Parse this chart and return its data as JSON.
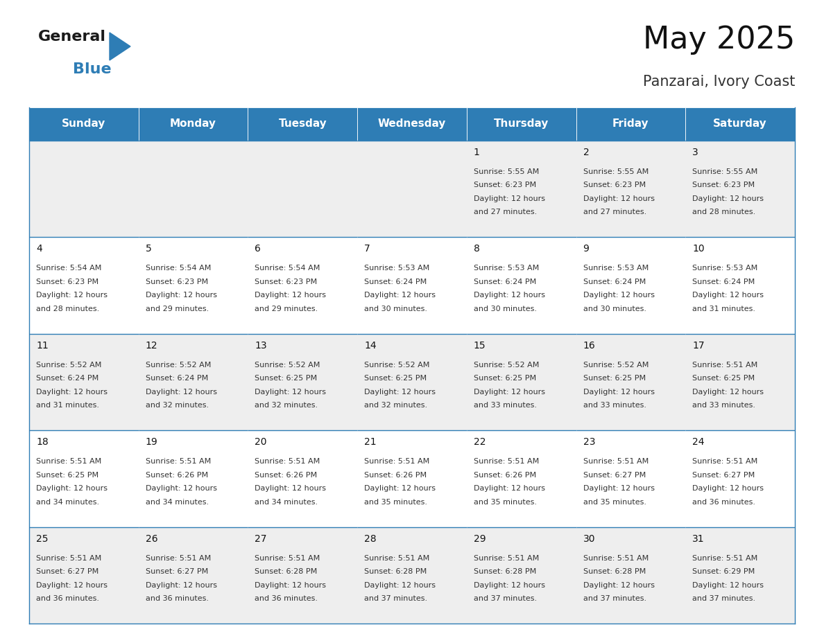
{
  "title": "May 2025",
  "subtitle": "Panzarai, Ivory Coast",
  "header_bg": "#2E7DB5",
  "header_text_color": "#FFFFFF",
  "days_of_week": [
    "Sunday",
    "Monday",
    "Tuesday",
    "Wednesday",
    "Thursday",
    "Friday",
    "Saturday"
  ],
  "row_bg_light": "#EEEEEE",
  "row_bg_white": "#FFFFFF",
  "cell_border_color": "#2E7DB5",
  "text_color": "#333333",
  "day_num_color": "#111111",
  "calendar": [
    [
      {
        "day": "",
        "sunrise": "",
        "sunset": "",
        "daylight": ""
      },
      {
        "day": "",
        "sunrise": "",
        "sunset": "",
        "daylight": ""
      },
      {
        "day": "",
        "sunrise": "",
        "sunset": "",
        "daylight": ""
      },
      {
        "day": "",
        "sunrise": "",
        "sunset": "",
        "daylight": ""
      },
      {
        "day": "1",
        "sunrise": "5:55 AM",
        "sunset": "6:23 PM",
        "daylight": "12 hours and 27 minutes."
      },
      {
        "day": "2",
        "sunrise": "5:55 AM",
        "sunset": "6:23 PM",
        "daylight": "12 hours and 27 minutes."
      },
      {
        "day": "3",
        "sunrise": "5:55 AM",
        "sunset": "6:23 PM",
        "daylight": "12 hours and 28 minutes."
      }
    ],
    [
      {
        "day": "4",
        "sunrise": "5:54 AM",
        "sunset": "6:23 PM",
        "daylight": "12 hours and 28 minutes."
      },
      {
        "day": "5",
        "sunrise": "5:54 AM",
        "sunset": "6:23 PM",
        "daylight": "12 hours and 29 minutes."
      },
      {
        "day": "6",
        "sunrise": "5:54 AM",
        "sunset": "6:23 PM",
        "daylight": "12 hours and 29 minutes."
      },
      {
        "day": "7",
        "sunrise": "5:53 AM",
        "sunset": "6:24 PM",
        "daylight": "12 hours and 30 minutes."
      },
      {
        "day": "8",
        "sunrise": "5:53 AM",
        "sunset": "6:24 PM",
        "daylight": "12 hours and 30 minutes."
      },
      {
        "day": "9",
        "sunrise": "5:53 AM",
        "sunset": "6:24 PM",
        "daylight": "12 hours and 30 minutes."
      },
      {
        "day": "10",
        "sunrise": "5:53 AM",
        "sunset": "6:24 PM",
        "daylight": "12 hours and 31 minutes."
      }
    ],
    [
      {
        "day": "11",
        "sunrise": "5:52 AM",
        "sunset": "6:24 PM",
        "daylight": "12 hours and 31 minutes."
      },
      {
        "day": "12",
        "sunrise": "5:52 AM",
        "sunset": "6:24 PM",
        "daylight": "12 hours and 32 minutes."
      },
      {
        "day": "13",
        "sunrise": "5:52 AM",
        "sunset": "6:25 PM",
        "daylight": "12 hours and 32 minutes."
      },
      {
        "day": "14",
        "sunrise": "5:52 AM",
        "sunset": "6:25 PM",
        "daylight": "12 hours and 32 minutes."
      },
      {
        "day": "15",
        "sunrise": "5:52 AM",
        "sunset": "6:25 PM",
        "daylight": "12 hours and 33 minutes."
      },
      {
        "day": "16",
        "sunrise": "5:52 AM",
        "sunset": "6:25 PM",
        "daylight": "12 hours and 33 minutes."
      },
      {
        "day": "17",
        "sunrise": "5:51 AM",
        "sunset": "6:25 PM",
        "daylight": "12 hours and 33 minutes."
      }
    ],
    [
      {
        "day": "18",
        "sunrise": "5:51 AM",
        "sunset": "6:25 PM",
        "daylight": "12 hours and 34 minutes."
      },
      {
        "day": "19",
        "sunrise": "5:51 AM",
        "sunset": "6:26 PM",
        "daylight": "12 hours and 34 minutes."
      },
      {
        "day": "20",
        "sunrise": "5:51 AM",
        "sunset": "6:26 PM",
        "daylight": "12 hours and 34 minutes."
      },
      {
        "day": "21",
        "sunrise": "5:51 AM",
        "sunset": "6:26 PM",
        "daylight": "12 hours and 35 minutes."
      },
      {
        "day": "22",
        "sunrise": "5:51 AM",
        "sunset": "6:26 PM",
        "daylight": "12 hours and 35 minutes."
      },
      {
        "day": "23",
        "sunrise": "5:51 AM",
        "sunset": "6:27 PM",
        "daylight": "12 hours and 35 minutes."
      },
      {
        "day": "24",
        "sunrise": "5:51 AM",
        "sunset": "6:27 PM",
        "daylight": "12 hours and 36 minutes."
      }
    ],
    [
      {
        "day": "25",
        "sunrise": "5:51 AM",
        "sunset": "6:27 PM",
        "daylight": "12 hours and 36 minutes."
      },
      {
        "day": "26",
        "sunrise": "5:51 AM",
        "sunset": "6:27 PM",
        "daylight": "12 hours and 36 minutes."
      },
      {
        "day": "27",
        "sunrise": "5:51 AM",
        "sunset": "6:28 PM",
        "daylight": "12 hours and 36 minutes."
      },
      {
        "day": "28",
        "sunrise": "5:51 AM",
        "sunset": "6:28 PM",
        "daylight": "12 hours and 37 minutes."
      },
      {
        "day": "29",
        "sunrise": "5:51 AM",
        "sunset": "6:28 PM",
        "daylight": "12 hours and 37 minutes."
      },
      {
        "day": "30",
        "sunrise": "5:51 AM",
        "sunset": "6:28 PM",
        "daylight": "12 hours and 37 minutes."
      },
      {
        "day": "31",
        "sunrise": "5:51 AM",
        "sunset": "6:29 PM",
        "daylight": "12 hours and 37 minutes."
      }
    ]
  ],
  "title_fontsize": 32,
  "subtitle_fontsize": 15,
  "dow_fontsize": 11,
  "day_num_fontsize": 10,
  "cell_text_fontsize": 8
}
